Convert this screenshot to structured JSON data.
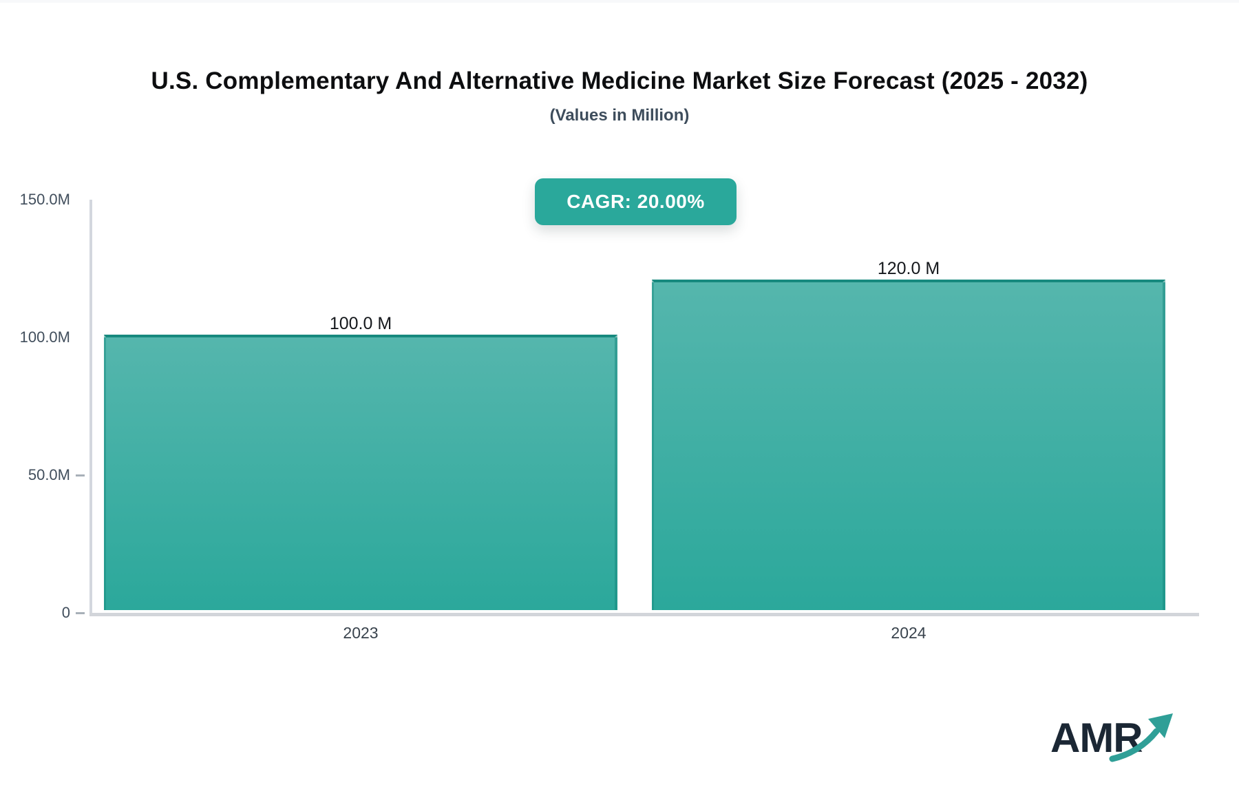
{
  "header": {
    "title": "U.S. Complementary And Alternative Medicine Market Size Forecast (2025 - 2032)",
    "subtitle": "(Values in Million)"
  },
  "badge": {
    "label": "CAGR: 20.00%",
    "bg_color": "#2aa89b",
    "text_color": "#ffffff"
  },
  "chart_data": {
    "type": "bar",
    "title": "U.S. Complementary And Alternative Medicine Market Size Forecast (2025 - 2032)",
    "subtitle": "(Values in Million)",
    "unit": "Million",
    "categories": [
      "2023",
      "2024"
    ],
    "values": [
      100.0,
      120.0
    ],
    "value_labels": [
      "100.0 M",
      "120.0 M"
    ],
    "annotation": "CAGR: 20.00%",
    "ylim": [
      0,
      150
    ],
    "yticks": [
      {
        "label": "150.0M",
        "value": 150,
        "dash": false
      },
      {
        "label": "100.0M",
        "value": 100,
        "dash": false
      },
      {
        "label": "50.0M",
        "value": 50,
        "dash": true
      },
      {
        "label": "0",
        "value": 0,
        "dash": true
      }
    ],
    "grid": false,
    "legend": false,
    "bar_color_top": "#55b6ad",
    "bar_color_bottom": "#2ba89b",
    "bar_border_color": "#17897e",
    "axis_color": "#d3d7de"
  },
  "logo": {
    "text": "AMR",
    "text_color": "#1b2734",
    "arrow_color": "#2f9f97"
  }
}
